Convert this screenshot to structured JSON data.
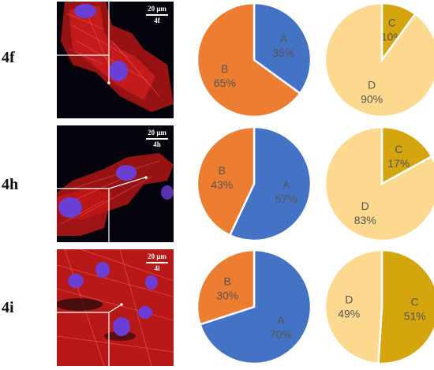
{
  "rows": [
    {
      "label": "4f",
      "scale_text": "20 μm",
      "panel_tag": "4f"
    },
    {
      "label": "4h",
      "scale_text": "20 μm",
      "panel_tag": "4h"
    },
    {
      "label": "4i",
      "scale_text": "20 μm",
      "panel_tag": "4i"
    }
  ],
  "colors": {
    "A": "#4472c4",
    "B": "#ed7d31",
    "C": "#d4a50c",
    "D": "#fdd88f",
    "cell_red": "#d21a1a",
    "nucleus": "#6b3fd6"
  },
  "chart_data": [
    {
      "type": "pie",
      "title": "",
      "row": "4f",
      "categories": [
        "A",
        "B"
      ],
      "values": [
        35,
        65
      ],
      "labels": [
        "35%",
        "65%"
      ]
    },
    {
      "type": "pie",
      "title": "",
      "row": "4f",
      "categories": [
        "C",
        "D"
      ],
      "values": [
        10,
        90
      ],
      "labels": [
        "10%",
        "90%"
      ]
    },
    {
      "type": "pie",
      "title": "",
      "row": "4h",
      "categories": [
        "A",
        "B"
      ],
      "values": [
        57,
        43
      ],
      "labels": [
        "57%",
        "43%"
      ]
    },
    {
      "type": "pie",
      "title": "",
      "row": "4h",
      "categories": [
        "C",
        "D"
      ],
      "values": [
        17,
        83
      ],
      "labels": [
        "17%",
        "83%"
      ]
    },
    {
      "type": "pie",
      "title": "",
      "row": "4i",
      "categories": [
        "A",
        "B"
      ],
      "values": [
        70,
        30
      ],
      "labels": [
        "70%",
        "30%"
      ]
    },
    {
      "type": "pie",
      "title": "",
      "row": "4i",
      "categories": [
        "C",
        "D"
      ],
      "values": [
        51,
        49
      ],
      "labels": [
        "51%",
        "49%"
      ]
    }
  ]
}
